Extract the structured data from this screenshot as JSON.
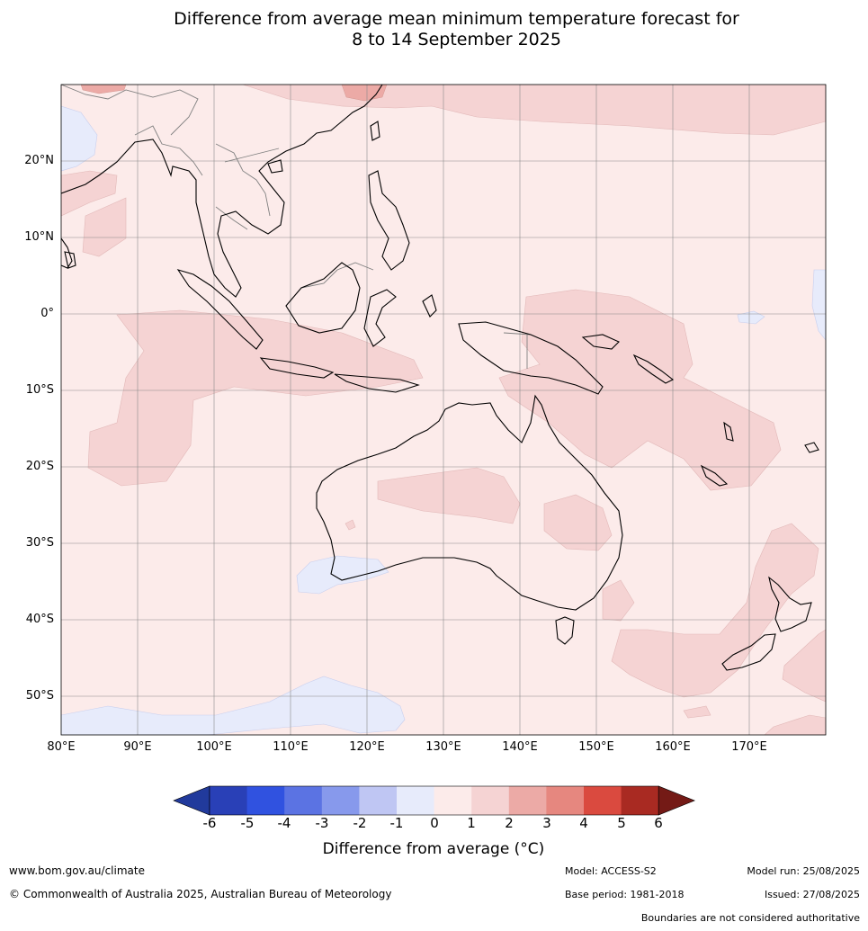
{
  "title_line1": "Difference from average mean minimum temperature forecast for",
  "title_line2": "8 to 14 September 2025",
  "map": {
    "lon_range": [
      80,
      180
    ],
    "lat_range": [
      -55,
      30
    ],
    "lat_labels": [
      "20°N",
      "10°N",
      "0°",
      "10°S",
      "20°S",
      "30°S",
      "40°S",
      "50°S"
    ],
    "lon_labels": [
      "80°E",
      "90°E",
      "100°E",
      "110°E",
      "120°E",
      "130°E",
      "140°E",
      "150°E",
      "160°E",
      "170°E"
    ],
    "background_color": "#fcebea",
    "gridline_color": "#8a8a8a"
  },
  "colorbar": {
    "ticks": [
      "-6",
      "-5",
      "-4",
      "-3",
      "-2",
      "-1",
      "0",
      "1",
      "2",
      "3",
      "4",
      "5",
      "6"
    ],
    "colors": [
      "#213a9c",
      "#2940b7",
      "#3052e0",
      "#5b73e3",
      "#8799ec",
      "#bfc6f3",
      "#e7ebfb",
      "#fcebea",
      "#f5d3d3",
      "#ecaaa6",
      "#e6877f",
      "#da4a3f",
      "#a92a22",
      "#741a16"
    ],
    "label": "Difference from average (°C)"
  },
  "footer": {
    "website": "www.bom.gov.au/climate",
    "copyright": "© Commonwealth of Australia 2025, Australian Bureau of Meteorology",
    "model": "Model: ACCESS-S2",
    "base_period": "Base period: 1981-2018",
    "model_run": "Model run: 25/08/2025",
    "issued": "Issued: 27/08/2025",
    "disclaimer": "Boundaries are not considered authoritative"
  }
}
